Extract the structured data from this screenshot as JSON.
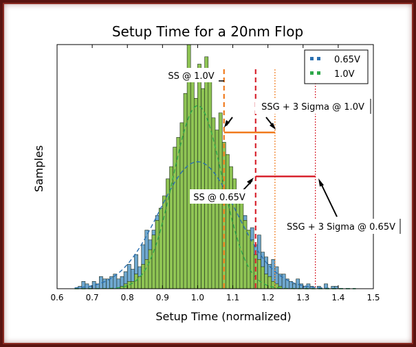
{
  "chart_data": {
    "type": "bar",
    "title": "Setup Time for a 20nm Flop",
    "xlabel": "Setup Time (normalized)",
    "ylabel": "Samples",
    "xlim": [
      0.6,
      1.5
    ],
    "ylim": [
      0,
      100
    ],
    "xticks": [
      "0.6",
      "0.7",
      "0.8",
      "0.9",
      "1.0",
      "1.1",
      "1.2",
      "1.3",
      "1.4",
      "1.5"
    ],
    "yticks_shown": false,
    "legend_position": "top-right",
    "bin_width": 0.01,
    "series": [
      {
        "name": "0.65V",
        "color": "#6fa8d0",
        "fit_color": "#2a6fb0",
        "fit": {
          "mean": 1.0,
          "sd": 0.11,
          "peak": 52
        },
        "bins": [
          [
            0.66,
            1
          ],
          [
            0.67,
            3
          ],
          [
            0.68,
            2
          ],
          [
            0.69,
            1
          ],
          [
            0.7,
            3
          ],
          [
            0.71,
            2
          ],
          [
            0.72,
            5
          ],
          [
            0.73,
            4
          ],
          [
            0.74,
            4
          ],
          [
            0.75,
            5
          ],
          [
            0.76,
            6
          ],
          [
            0.77,
            4
          ],
          [
            0.78,
            5
          ],
          [
            0.79,
            7
          ],
          [
            0.8,
            10
          ],
          [
            0.81,
            8
          ],
          [
            0.82,
            14
          ],
          [
            0.83,
            9
          ],
          [
            0.84,
            18
          ],
          [
            0.85,
            24
          ],
          [
            0.86,
            20
          ],
          [
            0.87,
            24
          ],
          [
            0.88,
            30
          ],
          [
            0.89,
            26
          ],
          [
            0.9,
            29
          ],
          [
            0.91,
            34
          ],
          [
            0.92,
            38
          ],
          [
            0.93,
            38
          ],
          [
            0.94,
            33
          ],
          [
            0.95,
            43
          ],
          [
            0.96,
            42
          ],
          [
            0.97,
            52
          ],
          [
            0.98,
            55
          ],
          [
            0.99,
            48
          ],
          [
            1.0,
            51
          ],
          [
            1.01,
            55
          ],
          [
            1.02,
            52
          ],
          [
            1.03,
            50
          ],
          [
            1.04,
            45
          ],
          [
            1.05,
            43
          ],
          [
            1.06,
            40
          ],
          [
            1.07,
            35
          ],
          [
            1.08,
            38
          ],
          [
            1.09,
            34
          ],
          [
            1.1,
            30
          ],
          [
            1.11,
            28
          ],
          [
            1.12,
            28
          ],
          [
            1.13,
            30
          ],
          [
            1.14,
            22
          ],
          [
            1.15,
            25
          ],
          [
            1.16,
            18
          ],
          [
            1.17,
            22
          ],
          [
            1.18,
            15
          ],
          [
            1.19,
            13
          ],
          [
            1.2,
            10
          ],
          [
            1.21,
            12
          ],
          [
            1.22,
            9
          ],
          [
            1.23,
            6
          ],
          [
            1.24,
            6
          ],
          [
            1.25,
            4
          ],
          [
            1.26,
            3
          ],
          [
            1.27,
            2
          ],
          [
            1.28,
            4
          ],
          [
            1.29,
            2
          ],
          [
            1.3,
            1
          ],
          [
            1.31,
            2
          ],
          [
            1.32,
            1
          ],
          [
            1.34,
            1
          ],
          [
            1.36,
            2
          ],
          [
            1.38,
            1
          ],
          [
            1.39,
            1
          ]
        ]
      },
      {
        "name": "1.0V",
        "color": "#8fc454",
        "fit_color": "#2fa84a",
        "fit": {
          "mean": 1.0,
          "sd": 0.07,
          "peak": 75
        },
        "bins": [
          [
            0.78,
            1
          ],
          [
            0.79,
            2
          ],
          [
            0.8,
            3
          ],
          [
            0.81,
            3
          ],
          [
            0.82,
            6
          ],
          [
            0.83,
            5
          ],
          [
            0.84,
            10
          ],
          [
            0.85,
            12
          ],
          [
            0.86,
            16
          ],
          [
            0.87,
            22
          ],
          [
            0.88,
            28
          ],
          [
            0.89,
            33
          ],
          [
            0.9,
            38
          ],
          [
            0.91,
            45
          ],
          [
            0.92,
            50
          ],
          [
            0.93,
            58
          ],
          [
            0.94,
            62
          ],
          [
            0.95,
            68
          ],
          [
            0.96,
            80
          ],
          [
            0.97,
            100
          ],
          [
            0.98,
            88
          ],
          [
            0.99,
            78
          ],
          [
            1.0,
            92
          ],
          [
            1.01,
            82
          ],
          [
            1.02,
            95
          ],
          [
            1.03,
            85
          ],
          [
            1.04,
            70
          ],
          [
            1.05,
            65
          ],
          [
            1.06,
            72
          ],
          [
            1.07,
            60
          ],
          [
            1.08,
            55
          ],
          [
            1.09,
            50
          ],
          [
            1.1,
            45
          ],
          [
            1.11,
            40
          ],
          [
            1.12,
            35
          ],
          [
            1.13,
            28
          ],
          [
            1.14,
            24
          ],
          [
            1.15,
            20
          ],
          [
            1.16,
            14
          ],
          [
            1.17,
            12
          ],
          [
            1.18,
            9
          ],
          [
            1.19,
            6
          ],
          [
            1.2,
            5
          ],
          [
            1.21,
            3
          ],
          [
            1.22,
            2
          ],
          [
            1.23,
            1
          ]
        ]
      }
    ],
    "vlines": [
      {
        "x": 1.075,
        "color": "#f07a1c",
        "style": "dashed"
      },
      {
        "x": 1.165,
        "color": "#d8242f",
        "style": "dashed"
      },
      {
        "x": 1.22,
        "color": "#f07a1c",
        "style": "dotted"
      },
      {
        "x": 1.335,
        "color": "#d8242f",
        "style": "dotted"
      }
    ],
    "hlines": [
      {
        "x0": 1.075,
        "x1": 1.22,
        "y": 64,
        "color": "#f07a1c"
      },
      {
        "x0": 1.165,
        "x1": 1.335,
        "y": 46,
        "color": "#d8242f"
      }
    ],
    "annotations": [
      {
        "text": "SS @ 1.0V"
      },
      {
        "text": "SSG + 3 Sigma @ 1.0V"
      },
      {
        "text": "SS @ 0.65V"
      },
      {
        "text": "SSG + 3 Sigma @ 0.65V"
      }
    ]
  }
}
